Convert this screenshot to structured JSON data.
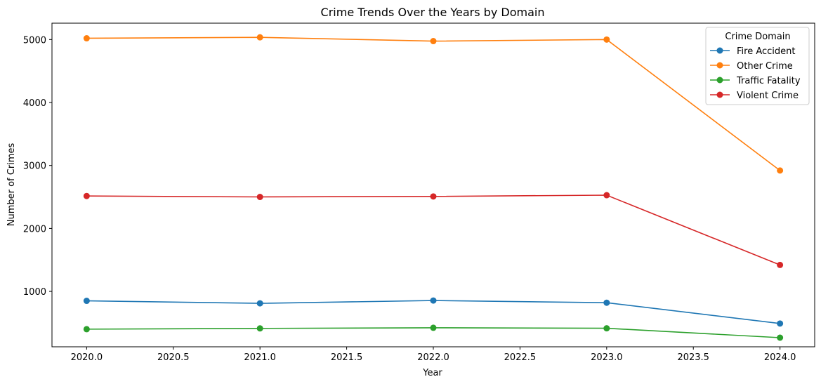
{
  "chart_data": {
    "type": "line",
    "title": "Crime Trends Over the Years by Domain",
    "xlabel": "Year",
    "ylabel": "Number of Crimes",
    "xlim": [
      1979.8,
      2024.2
    ],
    "ylim": [
      120,
      5260
    ],
    "x": [
      2020,
      2021,
      2022,
      2023,
      2024
    ],
    "x_ticks": [
      2020.0,
      2020.5,
      2021.0,
      2021.5,
      2022.0,
      2022.5,
      2023.0,
      2023.5,
      2024.0
    ],
    "x_tick_labels": [
      "2020.0",
      "2020.5",
      "2021.0",
      "2021.5",
      "2022.0",
      "2022.5",
      "2023.0",
      "2023.5",
      "2024.0"
    ],
    "y_ticks": [
      1000,
      2000,
      3000,
      4000,
      5000
    ],
    "y_tick_labels": [
      "1000",
      "2000",
      "3000",
      "4000",
      "5000"
    ],
    "grid": false,
    "legend": {
      "title": "Crime Domain",
      "placement": "top-right"
    },
    "series": [
      {
        "name": "Fire Accident",
        "color": "#1f77b4",
        "values": [
          850,
          810,
          855,
          820,
          490
        ]
      },
      {
        "name": "Other Crime",
        "color": "#ff7f0e",
        "values": [
          5020,
          5035,
          4975,
          5000,
          2920
        ]
      },
      {
        "name": "Traffic Fatality",
        "color": "#2ca02c",
        "values": [
          400,
          412,
          422,
          414,
          265
        ]
      },
      {
        "name": "Violent Crime",
        "color": "#d62728",
        "values": [
          2515,
          2500,
          2508,
          2528,
          1420
        ]
      }
    ]
  }
}
